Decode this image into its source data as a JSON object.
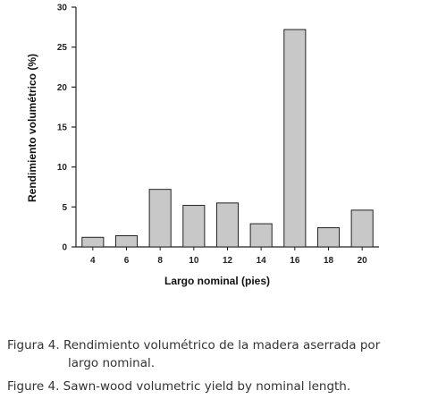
{
  "chart_data": {
    "type": "bar",
    "categories": [
      "4",
      "6",
      "8",
      "10",
      "12",
      "14",
      "16",
      "18",
      "20"
    ],
    "values": [
      1.2,
      1.4,
      7.2,
      5.2,
      5.5,
      2.9,
      27.2,
      2.4,
      4.6
    ],
    "xlabel": "Largo nominal (pies)",
    "ylabel": "Rendimiento volumétrico (%)",
    "ylim": [
      0,
      30
    ],
    "yticks": [
      0,
      5,
      10,
      15,
      20,
      25,
      30
    ],
    "bar_color": "#c8c8c8",
    "bar_edge_color": "#222222",
    "grid": false
  },
  "caption": {
    "es_line1": "Figura 4. Rendimiento volumétrico de la madera aserrada por",
    "es_line2": "largo nominal.",
    "en": "Figure 4. Sawn-wood volumetric yield by nominal length."
  }
}
